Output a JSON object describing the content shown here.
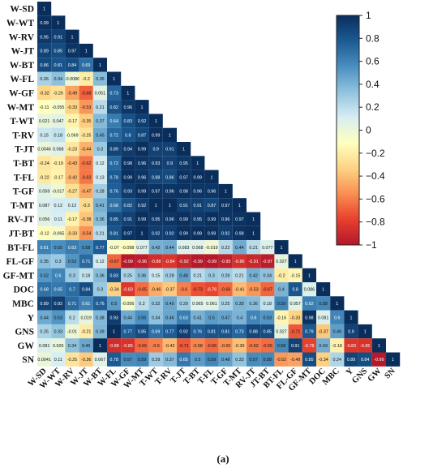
{
  "chart_data": {
    "type": "heatmap",
    "variables": [
      "W-SD",
      "W-WT",
      "W-RV",
      "W-JT",
      "W-BT",
      "W-FL",
      "W-GF",
      "W-MT",
      "T-WT",
      "T-RV",
      "T-JT",
      "T-BT",
      "T-FL",
      "T-GF",
      "T-MT",
      "RV-JT",
      "JT-BT",
      "BT-FL",
      "FL-GF",
      "GF-MT",
      "DOC",
      "MBC",
      "Y",
      "GNS",
      "GW",
      "SN"
    ],
    "lower_triangle_rows": [
      [
        "1"
      ],
      [
        "0.99",
        "1"
      ],
      [
        "0.95",
        "0.91",
        "1"
      ],
      [
        "0.89",
        "0.85",
        "0.97",
        "1"
      ],
      [
        "0.86",
        "0.81",
        "0.84",
        "0.69",
        "1"
      ],
      [
        "0.26",
        "0.34",
        "-0.0086",
        "-0.2",
        "0.36",
        "1"
      ],
      [
        "-0.32",
        "-0.26",
        "-0.49",
        "-0.68",
        "0.051",
        "0.73",
        "1"
      ],
      [
        "-0.11",
        "-0.055",
        "-0.33",
        "-0.53",
        "0.21",
        "0.82",
        "0.96",
        "1"
      ],
      [
        "0.021",
        "0.047",
        "-0.17",
        "-0.35",
        "0.37",
        "0.64",
        "0.83",
        "0.92",
        "1"
      ],
      [
        "0.15",
        "0.18",
        "-0.069",
        "-0.25",
        "0.45",
        "0.72",
        "0.8",
        "0.87",
        "0.99",
        "1"
      ],
      [
        "0.0046",
        "0.068",
        "-0.23",
        "-0.44",
        "0.3",
        "0.89",
        "0.94",
        "0.99",
        "0.9",
        "0.91",
        "1"
      ],
      [
        "-0.24",
        "-0.19",
        "-0.43",
        "-0.62",
        "0.12",
        "0.72",
        "0.98",
        "0.96",
        "0.93",
        "0.9",
        "0.95",
        "1"
      ],
      [
        "-0.22",
        "-0.17",
        "-0.42",
        "-0.62",
        "0.13",
        "0.78",
        "0.99",
        "0.96",
        "0.88",
        "0.86",
        "0.97",
        "0.99",
        "1"
      ],
      [
        "0.059",
        "-0.017",
        "-0.27",
        "-0.47",
        "0.28",
        "0.76",
        "0.93",
        "0.99",
        "0.97",
        "0.96",
        "0.98",
        "0.96",
        "0.96",
        "1"
      ],
      [
        "0.087",
        "0.12",
        "0.12",
        "-0.3",
        "0.41",
        "0.68",
        "0.82",
        "0.92",
        "1",
        "1",
        "0.91",
        "0.91",
        "0.87",
        "0.97",
        "1"
      ],
      [
        "0.056",
        "0.11",
        "-0.17",
        "-0.38",
        "0.36",
        "0.85",
        "0.91",
        "0.99",
        "0.95",
        "0.96",
        "0.99",
        "0.95",
        "0.99",
        "0.96",
        "0.97",
        "1"
      ],
      [
        "-0.12",
        "-0.065",
        "-0.33",
        "-0.54",
        "0.21",
        "0.81",
        "0.97",
        "1",
        "0.92",
        "0.92",
        "0.99",
        "0.99",
        "0.99",
        "0.92",
        "0.98",
        "1"
      ],
      [
        "0.61",
        "0.55",
        "0.63",
        "0.58",
        "0.77",
        "-0.07",
        "-0.098",
        "0.077",
        "0.42",
        "0.44",
        "0.083",
        "0.068",
        "-0.019",
        "0.22",
        "0.44",
        "0.21",
        "0.077",
        "1"
      ],
      [
        "0.35",
        "0.3",
        "0.53",
        "0.71",
        "0.12",
        "-0.67",
        "-0.99",
        "-0.96",
        "-0.88",
        "-0.84",
        "-0.92",
        "-0.99",
        "-0.99",
        "-0.95",
        "-0.86",
        "-0.91",
        "-0.97",
        "0.027",
        "1"
      ],
      [
        "0.52",
        "0.6",
        "0.3",
        "0.18",
        "0.36",
        "0.83",
        "0.25",
        "0.36",
        "0.15",
        "0.28",
        "0.48",
        "0.21",
        "0.3",
        "0.28",
        "0.21",
        "0.42",
        "0.34",
        "-0.2",
        "-0.15",
        "1"
      ],
      [
        "0.68",
        "0.65",
        "0.7",
        "0.84",
        "0.3",
        "-0.34",
        "-0.83",
        "-0.65",
        "-0.46",
        "-0.37",
        "-0.6",
        "-0.73",
        "-0.76",
        "-0.66",
        "-0.41",
        "-0.53",
        "-0.67",
        "0.4",
        "0.8",
        "0.086",
        "1"
      ],
      [
        "0.89",
        "0.92",
        "0.71",
        "0.61",
        "0.76",
        "0.5",
        "-0.056",
        "0.2",
        "0.32",
        "0.45",
        "0.29",
        "0.065",
        "0.061",
        "0.25",
        "0.39",
        "0.36",
        "0.18",
        "0.59",
        "0.057",
        "0.62",
        "0.58",
        "1"
      ],
      [
        "0.44",
        "0.53",
        "0.2",
        "0.019",
        "0.38",
        "0.93",
        "0.44",
        "0.55",
        "0.34",
        "0.46",
        "0.63",
        "0.41",
        "0.5",
        "0.47",
        "0.4",
        "0.6",
        "0.53",
        "-0.16",
        "-0.33",
        "0.98",
        "0.081",
        "0.6",
        "1"
      ],
      [
        "0.25",
        "0.33",
        "-0.01",
        "-0.21",
        "0.39",
        "1",
        "0.77",
        "0.85",
        "0.69",
        "0.77",
        "0.92",
        "0.76",
        "0.81",
        "0.81",
        "0.73",
        "0.88",
        "0.85",
        "0.027",
        "-0.71",
        "0.79",
        "-0.37",
        "0.49",
        "0.9",
        "1"
      ],
      [
        "0.081",
        "0.026",
        "0.34",
        "0.46",
        "1",
        "-0.88",
        "-0.85",
        "-0.66",
        "-0.6",
        "-0.42",
        "-0.71",
        "-0.58",
        "-0.66",
        "-0.55",
        "-0.39",
        "-0.62",
        "-0.65",
        "0.58",
        "0.91",
        "-0.78",
        "0.43",
        "-0.18",
        "-0.83",
        "-0.85",
        "1"
      ],
      [
        "0.0041",
        "0.11",
        "-0.25",
        "-0.36",
        "0.067",
        "0.78",
        "0.57",
        "0.59",
        "0.29",
        "0.37",
        "0.65",
        "0.5",
        "0.59",
        "0.48",
        "0.33",
        "0.57",
        "0.58",
        "-0.52",
        "-0.49",
        "0.85",
        "-0.34",
        "0.24",
        "0.89",
        "0.84",
        "-0.99",
        "1"
      ]
    ],
    "colorbar": {
      "range": [
        -1,
        1
      ],
      "tick_labels": [
        "1",
        "0.8",
        "0.6",
        "0.4",
        "0.2",
        "0",
        "−0.2",
        "−0.4",
        "−0.6",
        "−0.8",
        "−1"
      ],
      "colors": [
        "#b2182b",
        "#e8402d",
        "#f98e52",
        "#fdd384",
        "#ffffbf",
        "#d7eef2",
        "#91c3de",
        "#4a8fc0",
        "#1b5a93",
        "#0a2e5c"
      ]
    },
    "caption": "(a)"
  }
}
